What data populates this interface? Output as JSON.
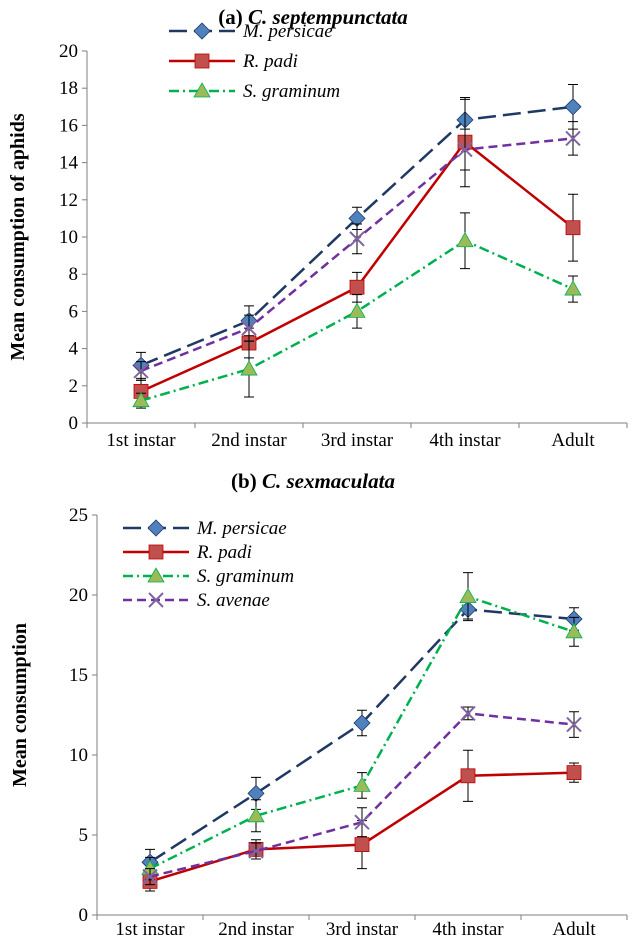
{
  "chart_data": [
    {
      "type": "line",
      "title_prefix": "(a) ",
      "title_species": "C. septempunctata",
      "xlabel": "",
      "ylabel": "Mean consumption of aphids",
      "ylim": [
        0,
        20
      ],
      "yticks": [
        0,
        2,
        4,
        6,
        8,
        10,
        12,
        14,
        16,
        18,
        20
      ],
      "categories": [
        "1st instar",
        "2nd instar",
        "3rd instar",
        "4th instar",
        "Adult"
      ],
      "legend_position": "top-left",
      "series": [
        {
          "name": "M. persicae",
          "values": [
            3.1,
            5.5,
            11.0,
            16.3,
            17.0
          ],
          "errors": [
            0.7,
            0.8,
            0.6,
            1.1,
            1.2
          ],
          "color": "#1F3864",
          "marker": "diamond",
          "markerColor": "#4F81BD",
          "dash": "long-dash",
          "inLegend": true
        },
        {
          "name": "R. padi",
          "values": [
            1.7,
            4.3,
            7.3,
            15.1,
            10.5
          ],
          "errors": [
            0.6,
            0.8,
            0.8,
            2.4,
            1.8
          ],
          "color": "#C00000",
          "marker": "square",
          "markerColor": "#C0504D",
          "dash": "solid",
          "inLegend": true
        },
        {
          "name": "S. graminum",
          "values": [
            1.2,
            2.9,
            6.0,
            9.8,
            7.2
          ],
          "errors": [
            0.4,
            1.5,
            0.9,
            1.5,
            0.7
          ],
          "color": "#00B050",
          "marker": "triangle",
          "markerColor": "#9BBB59",
          "dash": "dash-dot",
          "inLegend": true
        },
        {
          "name": "S. avenae",
          "values": [
            2.8,
            5.1,
            9.9,
            14.7,
            15.3
          ],
          "errors": [
            0.5,
            0.7,
            0.8,
            1.1,
            0.9
          ],
          "color": "#7030A0",
          "marker": "x",
          "markerColor": "#8064A2",
          "dash": "dash",
          "inLegend": false
        }
      ]
    },
    {
      "type": "line",
      "title_prefix": "(b) ",
      "title_species": "C. sexmaculata",
      "xlabel": "",
      "ylabel": "Mean consumption",
      "ylim": [
        0,
        25
      ],
      "yticks": [
        0,
        5,
        10,
        15,
        20,
        25
      ],
      "categories": [
        "1st instar",
        "2nd instar",
        "3rd instar",
        "4th instar",
        "Adult"
      ],
      "legend_position": "top-left",
      "series": [
        {
          "name": "M. persicae",
          "values": [
            3.3,
            7.6,
            12.0,
            19.1,
            18.5
          ],
          "errors": [
            0.8,
            1.0,
            0.8,
            0.6,
            0.7
          ],
          "color": "#1F3864",
          "marker": "diamond",
          "markerColor": "#4F81BD",
          "dash": "long-dash",
          "inLegend": true
        },
        {
          "name": "R. padi",
          "values": [
            2.1,
            4.1,
            4.4,
            8.7,
            8.9
          ],
          "errors": [
            0.6,
            0.6,
            1.5,
            1.6,
            0.6
          ],
          "color": "#C00000",
          "marker": "square",
          "markerColor": "#C0504D",
          "dash": "solid",
          "inLegend": true
        },
        {
          "name": "S. graminum",
          "values": [
            2.9,
            6.2,
            8.1,
            19.9,
            17.7
          ],
          "errors": [
            0.7,
            1.0,
            0.8,
            1.5,
            0.9
          ],
          "color": "#00B050",
          "marker": "triangle",
          "markerColor": "#9BBB59",
          "dash": "dash-dot",
          "inLegend": true
        },
        {
          "name": "S. avenae",
          "values": [
            2.4,
            4.0,
            5.8,
            12.6,
            11.9
          ],
          "errors": [
            0.5,
            0.5,
            0.9,
            0.4,
            0.8
          ],
          "color": "#7030A0",
          "marker": "x",
          "markerColor": "#8064A2",
          "dash": "dash",
          "inLegend": true
        }
      ]
    }
  ]
}
